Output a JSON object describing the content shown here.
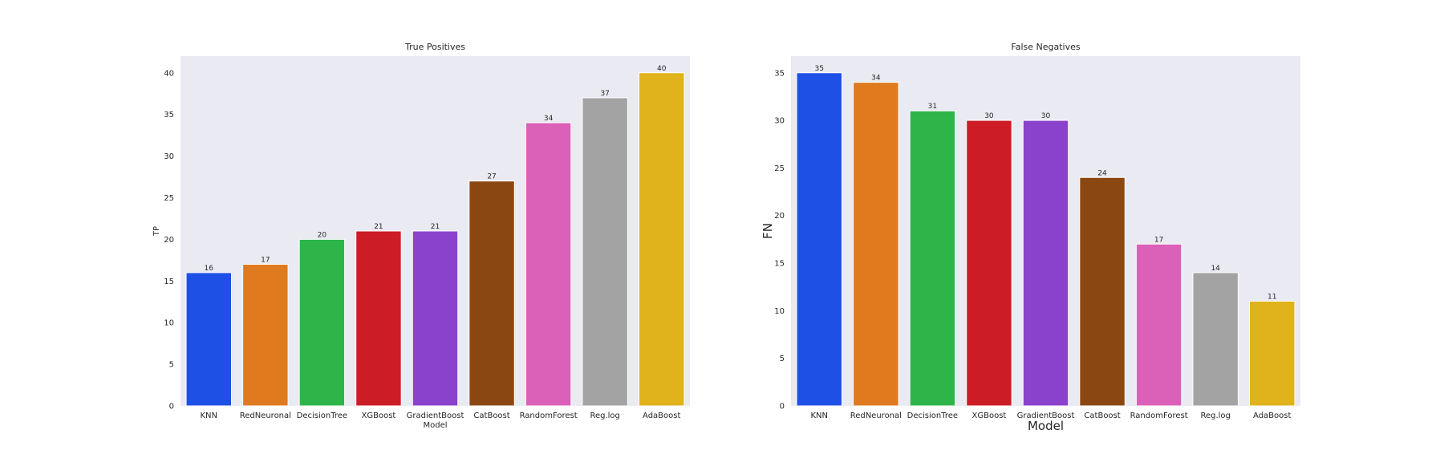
{
  "chart_data": [
    {
      "type": "bar",
      "title": "True Positives",
      "xlabel": "Model",
      "ylabel": "TP",
      "categories": [
        "KNN",
        "RedNeuronal",
        "DecisionTree",
        "XGBoost",
        "GradientBoost",
        "CatBoost",
        "RandomForest",
        "Reg.log",
        "AdaBoost"
      ],
      "values": [
        16,
        17,
        20,
        21,
        21,
        27,
        34,
        37,
        40
      ],
      "yticks": [
        0,
        5,
        10,
        15,
        20,
        25,
        30,
        35,
        40
      ],
      "ylim": [
        0,
        42
      ],
      "grid": false,
      "bar_colors": [
        "#1f50e6",
        "#df7a1f",
        "#2db54a",
        "#cc1c25",
        "#8a42cc",
        "#8b4712",
        "#db60b8",
        "#a3a3a3",
        "#e0b21b"
      ],
      "background": "#eaeaf2"
    },
    {
      "type": "bar",
      "title": "False Negatives",
      "xlabel": "Model",
      "ylabel": "FN",
      "categories": [
        "KNN",
        "RedNeuronal",
        "DecisionTree",
        "XGBoost",
        "GradientBoost",
        "CatBoost",
        "RandomForest",
        "Reg.log",
        "AdaBoost"
      ],
      "values": [
        35,
        34,
        31,
        30,
        30,
        24,
        17,
        14,
        11
      ],
      "yticks": [
        0,
        5,
        10,
        15,
        20,
        25,
        30,
        35
      ],
      "ylim": [
        0,
        36.75
      ],
      "grid": false,
      "bar_colors": [
        "#1f50e6",
        "#df7a1f",
        "#2db54a",
        "#cc1c25",
        "#8a42cc",
        "#8b4712",
        "#db60b8",
        "#a3a3a3",
        "#e0b21b"
      ],
      "background": "#eaeaf2"
    }
  ]
}
